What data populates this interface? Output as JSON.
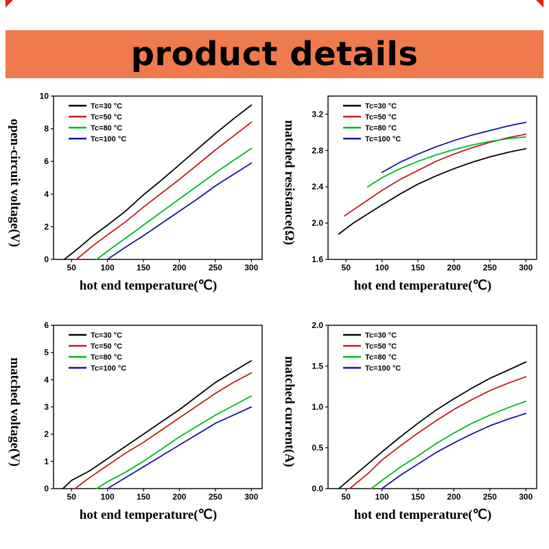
{
  "banner": {
    "title": "product details",
    "bg_color": "#ef7a4d",
    "accent_color": "#e02020"
  },
  "chart_data": [
    {
      "type": "line",
      "title": "",
      "ylabel": "open-circuit voltage(V)",
      "xlabel": "hot end temperature(℃)",
      "xlim": [
        25,
        315
      ],
      "ylim": [
        0,
        10
      ],
      "grid": false,
      "legend_position": "top-left-inside",
      "xticks": [
        {
          "v": 50,
          "label": "50"
        },
        {
          "v": 100,
          "label": "100"
        },
        {
          "v": 150,
          "label": "150"
        },
        {
          "v": 200,
          "label": "200"
        },
        {
          "v": 250,
          "label": "250"
        },
        {
          "v": 300,
          "label": "300"
        }
      ],
      "yticks": [
        {
          "v": 0,
          "label": "0"
        },
        {
          "v": 2,
          "label": "2"
        },
        {
          "v": 4,
          "label": "4"
        },
        {
          "v": 6,
          "label": "6"
        },
        {
          "v": 8,
          "label": "8"
        },
        {
          "v": 10,
          "label": "10"
        }
      ],
      "series": [
        {
          "name": "Tc=30 °C",
          "color": "#000000",
          "points": [
            [
              40,
              0
            ],
            [
              60,
              0.7
            ],
            [
              80,
              1.45
            ],
            [
              100,
              2.1
            ],
            [
              125,
              2.95
            ],
            [
              150,
              3.95
            ],
            [
              175,
              4.85
            ],
            [
              200,
              5.8
            ],
            [
              225,
              6.75
            ],
            [
              250,
              7.7
            ],
            [
              275,
              8.6
            ],
            [
              300,
              9.45
            ]
          ]
        },
        {
          "name": "Tc=50 °C",
          "color": "#c41a1a",
          "points": [
            [
              57,
              0
            ],
            [
              80,
              0.85
            ],
            [
              100,
              1.5
            ],
            [
              125,
              2.3
            ],
            [
              150,
              3.2
            ],
            [
              175,
              4.05
            ],
            [
              200,
              4.9
            ],
            [
              225,
              5.8
            ],
            [
              250,
              6.7
            ],
            [
              275,
              7.55
            ],
            [
              300,
              8.4
            ]
          ]
        },
        {
          "name": "Tc=80 °C",
          "color": "#00b81f",
          "points": [
            [
              85,
              0
            ],
            [
              100,
              0.5
            ],
            [
              125,
              1.3
            ],
            [
              150,
              2.1
            ],
            [
              175,
              2.9
            ],
            [
              200,
              3.7
            ],
            [
              225,
              4.5
            ],
            [
              250,
              5.3
            ],
            [
              275,
              6.05
            ],
            [
              300,
              6.8
            ]
          ]
        },
        {
          "name": "Tc=100 °C",
          "color": "#14149e",
          "points": [
            [
              100,
              0
            ],
            [
              125,
              0.75
            ],
            [
              150,
              1.45
            ],
            [
              175,
              2.2
            ],
            [
              200,
              2.95
            ],
            [
              225,
              3.7
            ],
            [
              250,
              4.5
            ],
            [
              275,
              5.2
            ],
            [
              300,
              5.9
            ]
          ]
        }
      ]
    },
    {
      "type": "line",
      "title": "",
      "ylabel": "matched resistance(Ω)",
      "xlabel": "hot end temperature(℃)",
      "xlim": [
        25,
        315
      ],
      "ylim": [
        1.6,
        3.4
      ],
      "grid": false,
      "legend_position": "top-left-inside",
      "xticks": [
        {
          "v": 50,
          "label": "50"
        },
        {
          "v": 100,
          "label": "100"
        },
        {
          "v": 150,
          "label": "150"
        },
        {
          "v": 200,
          "label": "200"
        },
        {
          "v": 250,
          "label": "250"
        },
        {
          "v": 300,
          "label": "300"
        }
      ],
      "yticks": [
        {
          "v": 1.6,
          "label": "1.6"
        },
        {
          "v": 2.0,
          "label": "2.0"
        },
        {
          "v": 2.4,
          "label": "2.4"
        },
        {
          "v": 2.8,
          "label": "2.8"
        },
        {
          "v": 3.2,
          "label": "3.2"
        }
      ],
      "series": [
        {
          "name": "Tc=30 °C",
          "color": "#000000",
          "points": [
            [
              40,
              1.88
            ],
            [
              60,
              2.0
            ],
            [
              80,
              2.1
            ],
            [
              100,
              2.2
            ],
            [
              125,
              2.32
            ],
            [
              150,
              2.43
            ],
            [
              175,
              2.52
            ],
            [
              200,
              2.6
            ],
            [
              225,
              2.67
            ],
            [
              250,
              2.73
            ],
            [
              275,
              2.78
            ],
            [
              300,
              2.82
            ]
          ]
        },
        {
          "name": "Tc=50 °C",
          "color": "#c41a1a",
          "points": [
            [
              48,
              2.08
            ],
            [
              70,
              2.2
            ],
            [
              100,
              2.36
            ],
            [
              125,
              2.48
            ],
            [
              150,
              2.58
            ],
            [
              175,
              2.68
            ],
            [
              200,
              2.76
            ],
            [
              225,
              2.83
            ],
            [
              250,
              2.89
            ],
            [
              275,
              2.94
            ],
            [
              300,
              2.98
            ]
          ]
        },
        {
          "name": "Tc=80 °C",
          "color": "#00b81f",
          "points": [
            [
              80,
              2.4
            ],
            [
              100,
              2.5
            ],
            [
              125,
              2.6
            ],
            [
              150,
              2.68
            ],
            [
              175,
              2.75
            ],
            [
              200,
              2.81
            ],
            [
              225,
              2.86
            ],
            [
              250,
              2.9
            ],
            [
              275,
              2.93
            ],
            [
              300,
              2.95
            ]
          ]
        },
        {
          "name": "Tc=100 °C",
          "color": "#14149e",
          "points": [
            [
              100,
              2.56
            ],
            [
              125,
              2.67
            ],
            [
              150,
              2.76
            ],
            [
              175,
              2.84
            ],
            [
              200,
              2.91
            ],
            [
              225,
              2.97
            ],
            [
              250,
              3.02
            ],
            [
              275,
              3.07
            ],
            [
              300,
              3.11
            ]
          ]
        }
      ]
    },
    {
      "type": "line",
      "title": "",
      "ylabel": "matched voltage(V)",
      "xlabel": "hot end temperature(℃)",
      "xlim": [
        25,
        315
      ],
      "ylim": [
        0,
        6
      ],
      "grid": false,
      "legend_position": "top-left-inside",
      "xticks": [
        {
          "v": 50,
          "label": "50"
        },
        {
          "v": 100,
          "label": "100"
        },
        {
          "v": 150,
          "label": "150"
        },
        {
          "v": 200,
          "label": "200"
        },
        {
          "v": 250,
          "label": "250"
        },
        {
          "v": 300,
          "label": "300"
        }
      ],
      "yticks": [
        {
          "v": 0,
          "label": "0"
        },
        {
          "v": 1,
          "label": "1"
        },
        {
          "v": 2,
          "label": "2"
        },
        {
          "v": 3,
          "label": "3"
        },
        {
          "v": 4,
          "label": "4"
        },
        {
          "v": 5,
          "label": "5"
        },
        {
          "v": 6,
          "label": "6"
        }
      ],
      "series": [
        {
          "name": "Tc=30 °C",
          "color": "#000000",
          "points": [
            [
              38,
              0
            ],
            [
              50,
              0.3
            ],
            [
              75,
              0.65
            ],
            [
              100,
              1.1
            ],
            [
              125,
              1.55
            ],
            [
              150,
              2.0
            ],
            [
              175,
              2.45
            ],
            [
              200,
              2.9
            ],
            [
              225,
              3.4
            ],
            [
              250,
              3.9
            ],
            [
              275,
              4.3
            ],
            [
              300,
              4.7
            ]
          ]
        },
        {
          "name": "Tc=50 °C",
          "color": "#c41a1a",
          "points": [
            [
              55,
              0
            ],
            [
              75,
              0.4
            ],
            [
              100,
              0.85
            ],
            [
              125,
              1.3
            ],
            [
              150,
              1.7
            ],
            [
              175,
              2.15
            ],
            [
              200,
              2.6
            ],
            [
              225,
              3.05
            ],
            [
              250,
              3.5
            ],
            [
              275,
              3.9
            ],
            [
              300,
              4.25
            ]
          ]
        },
        {
          "name": "Tc=80 °C",
          "color": "#00b81f",
          "points": [
            [
              85,
              0
            ],
            [
              100,
              0.25
            ],
            [
              125,
              0.6
            ],
            [
              150,
              1.0
            ],
            [
              175,
              1.45
            ],
            [
              200,
              1.9
            ],
            [
              225,
              2.3
            ],
            [
              250,
              2.7
            ],
            [
              275,
              3.05
            ],
            [
              300,
              3.4
            ]
          ]
        },
        {
          "name": "Tc=100 °C",
          "color": "#14149e",
          "points": [
            [
              100,
              0
            ],
            [
              125,
              0.4
            ],
            [
              150,
              0.8
            ],
            [
              175,
              1.2
            ],
            [
              200,
              1.6
            ],
            [
              225,
              2.0
            ],
            [
              250,
              2.4
            ],
            [
              275,
              2.7
            ],
            [
              300,
              3.0
            ]
          ]
        }
      ]
    },
    {
      "type": "line",
      "title": "",
      "ylabel": "matched current(A)",
      "xlabel": "hot end temperature(℃)",
      "xlim": [
        25,
        315
      ],
      "ylim": [
        0,
        2
      ],
      "grid": false,
      "legend_position": "top-left-inside",
      "xticks": [
        {
          "v": 50,
          "label": "50"
        },
        {
          "v": 100,
          "label": "100"
        },
        {
          "v": 150,
          "label": "150"
        },
        {
          "v": 200,
          "label": "200"
        },
        {
          "v": 250,
          "label": "250"
        },
        {
          "v": 300,
          "label": "300"
        }
      ],
      "yticks": [
        {
          "v": 0,
          "label": "0.0"
        },
        {
          "v": 0.5,
          "label": "0.5"
        },
        {
          "v": 1.0,
          "label": "1.0"
        },
        {
          "v": 1.5,
          "label": "1.5"
        },
        {
          "v": 2.0,
          "label": "2.0"
        }
      ],
      "series": [
        {
          "name": "Tc=30 °C",
          "color": "#000000",
          "points": [
            [
              40,
              0
            ],
            [
              60,
              0.15
            ],
            [
              80,
              0.3
            ],
            [
              100,
              0.45
            ],
            [
              125,
              0.63
            ],
            [
              150,
              0.8
            ],
            [
              175,
              0.96
            ],
            [
              200,
              1.1
            ],
            [
              225,
              1.23
            ],
            [
              250,
              1.35
            ],
            [
              275,
              1.45
            ],
            [
              300,
              1.55
            ]
          ]
        },
        {
          "name": "Tc=50 °C",
          "color": "#c41a1a",
          "points": [
            [
              55,
              0
            ],
            [
              80,
              0.18
            ],
            [
              100,
              0.35
            ],
            [
              125,
              0.52
            ],
            [
              150,
              0.68
            ],
            [
              175,
              0.83
            ],
            [
              200,
              0.97
            ],
            [
              225,
              1.09
            ],
            [
              250,
              1.2
            ],
            [
              275,
              1.29
            ],
            [
              300,
              1.37
            ]
          ]
        },
        {
          "name": "Tc=80 °C",
          "color": "#00b81f",
          "points": [
            [
              85,
              0
            ],
            [
              100,
              0.1
            ],
            [
              125,
              0.26
            ],
            [
              150,
              0.4
            ],
            [
              175,
              0.55
            ],
            [
              200,
              0.68
            ],
            [
              225,
              0.8
            ],
            [
              250,
              0.9
            ],
            [
              275,
              0.99
            ],
            [
              300,
              1.07
            ]
          ]
        },
        {
          "name": "Tc=100 °C",
          "color": "#14149e",
          "points": [
            [
              100,
              0
            ],
            [
              125,
              0.16
            ],
            [
              150,
              0.3
            ],
            [
              175,
              0.44
            ],
            [
              200,
              0.56
            ],
            [
              225,
              0.67
            ],
            [
              250,
              0.77
            ],
            [
              275,
              0.85
            ],
            [
              300,
              0.92
            ]
          ]
        }
      ]
    }
  ]
}
